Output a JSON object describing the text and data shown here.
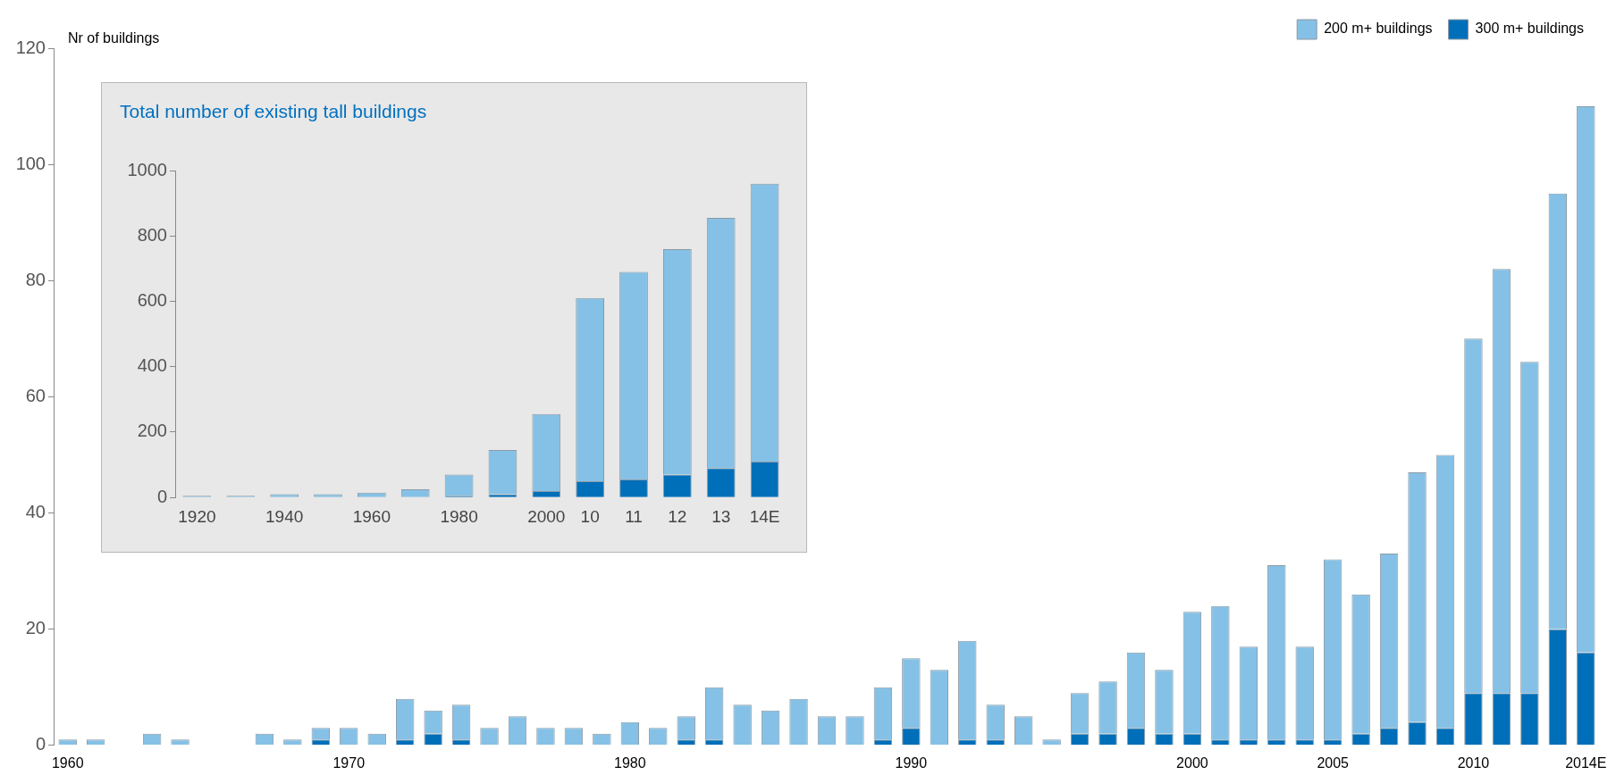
{
  "chart_data": [
    {
      "type": "bar",
      "ylabel": "Nr of buildings",
      "stacked": true,
      "legend": "top right",
      "categories": [
        "1960",
        null,
        null,
        null,
        null,
        null,
        null,
        null,
        null,
        null,
        "1970",
        null,
        null,
        null,
        null,
        null,
        null,
        null,
        null,
        null,
        "1980",
        null,
        null,
        null,
        null,
        null,
        null,
        null,
        null,
        null,
        "1990",
        null,
        null,
        null,
        null,
        null,
        null,
        null,
        null,
        null,
        "2000",
        null,
        null,
        null,
        null,
        "2005",
        null,
        null,
        null,
        null,
        "2010",
        null,
        null,
        null,
        "2014E"
      ],
      "series": [
        {
          "name": "300 m+ buildings",
          "color": "#006fb9",
          "values": [
            0,
            0,
            0,
            0,
            0,
            0,
            0,
            0,
            0,
            1,
            0,
            0,
            1,
            2,
            1,
            0,
            0,
            0,
            0,
            0,
            0,
            0,
            1,
            1,
            0,
            0,
            0,
            0,
            0,
            1,
            3,
            0,
            1,
            1,
            0,
            0,
            2,
            2,
            3,
            2,
            2,
            1,
            1,
            1,
            1,
            1,
            2,
            3,
            4,
            3,
            9,
            9,
            9,
            20,
            16
          ]
        },
        {
          "name": "200 m+ buildings",
          "color": "#85c1e6",
          "values": [
            1,
            1,
            0,
            2,
            1,
            0,
            0,
            2,
            1,
            2,
            3,
            2,
            7,
            4,
            6,
            3,
            5,
            3,
            3,
            2,
            4,
            3,
            4,
            9,
            7,
            6,
            8,
            5,
            5,
            9,
            12,
            13,
            17,
            6,
            5,
            1,
            7,
            9,
            13,
            11,
            21,
            23,
            16,
            30,
            16,
            31,
            24,
            30,
            43,
            47,
            61,
            73,
            57,
            75,
            94
          ]
        }
      ],
      "ylim": [
        0,
        120
      ],
      "yticks": [
        0,
        20,
        40,
        60,
        80,
        100,
        120
      ]
    },
    {
      "type": "bar",
      "title": "Total number of existing tall buildings",
      "stacked": true,
      "categories": [
        "1920",
        null,
        "1940",
        null,
        "1960",
        null,
        "1980",
        null,
        "2000",
        "10",
        "11",
        "12",
        "13",
        "14E"
      ],
      "series": [
        {
          "color": "#006fb9",
          "values": [
            0,
            0,
            0,
            0,
            0,
            0,
            5,
            10,
            20,
            50,
            55,
            70,
            90,
            110
          ]
        },
        {
          "color": "#85c1e6",
          "values": [
            5,
            5,
            10,
            10,
            15,
            25,
            65,
            135,
            235,
            560,
            635,
            690,
            765,
            850
          ]
        }
      ],
      "ylim": [
        0,
        1000
      ],
      "yticks": [
        0,
        200,
        400,
        600,
        800,
        1000
      ]
    }
  ]
}
